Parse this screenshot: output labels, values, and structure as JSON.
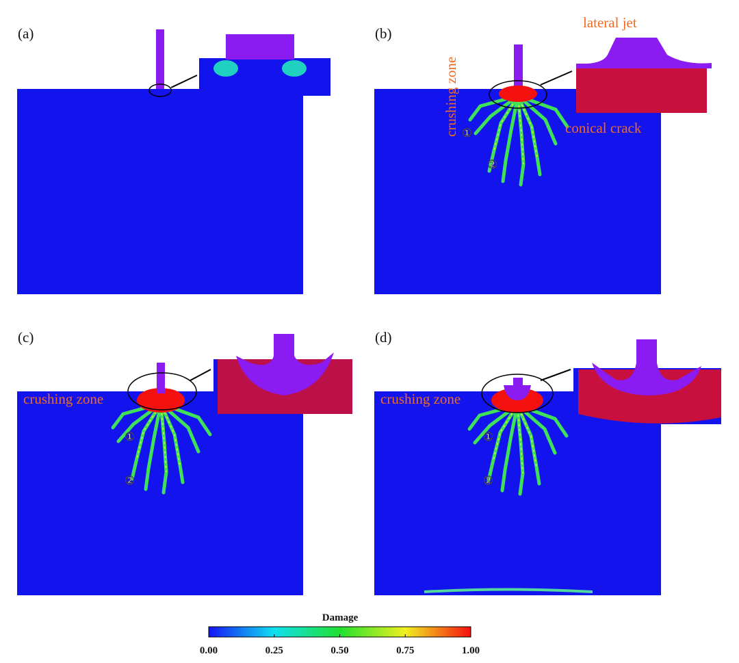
{
  "panels": [
    {
      "label": "(a)",
      "annotations": []
    },
    {
      "label": "(b)",
      "annotations": [
        "lateral jet",
        "crushing zone",
        "conical crack",
        "①",
        "②"
      ]
    },
    {
      "label": "(c)",
      "annotations": [
        "crushing zone",
        "①",
        "②"
      ]
    },
    {
      "label": "(d)",
      "annotations": [
        "crushing zone",
        "①",
        "②"
      ]
    }
  ],
  "colorbar": {
    "title": "Damage",
    "ticks": [
      "0.00",
      "0.25",
      "0.50",
      "0.75",
      "1.00"
    ]
  }
}
